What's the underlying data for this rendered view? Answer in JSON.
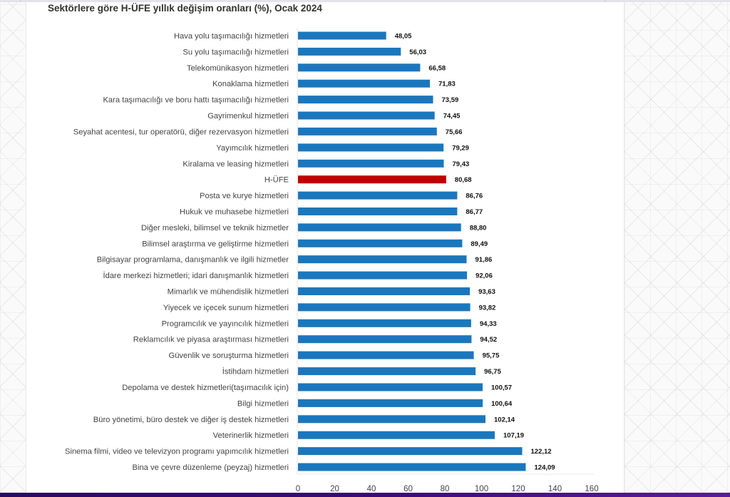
{
  "chart_data": {
    "type": "bar",
    "orientation": "horizontal",
    "title": "Sektörlere göre H-ÜFE yıllık değişim oranları (%), Ocak 2024",
    "xlabel": "",
    "ylabel": "",
    "xlim": [
      0,
      160
    ],
    "xticks": [
      "0",
      "20",
      "40",
      "60",
      "80",
      "100",
      "120",
      "140",
      "160"
    ],
    "grid": false,
    "legend": "none",
    "colors": {
      "default": "#1b77bd",
      "highlight": "#c00000"
    },
    "categories": [
      "Hava yolu taşımacılığı hizmetleri",
      "Su yolu taşımacılığı hizmetleri",
      "Telekomünikasyon hizmetleri",
      "Konaklama hizmetleri",
      "Kara taşımacılığı ve boru hattı taşımacılığı hizmetleri",
      "Gayrimenkul hizmetleri",
      "Seyahat acentesi, tur operatörü, diğer rezervasyon hizmetleri",
      "Yayımcılık hizmetleri",
      "Kiralama ve leasing hizmetleri",
      "H-ÜFE",
      "Posta ve kurye hizmetleri",
      "Hukuk ve muhasebe hizmetleri",
      "Diğer mesleki, bilimsel ve teknik hizmetler",
      "Bilimsel araştırma ve geliştirme hizmetleri",
      "Bilgisayar programlama, danışmanlık ve ilgili hizmetler",
      "İdare merkezi hizmetleri; idari danışmanlık hizmetleri",
      "Mimarlık ve mühendislik hizmetleri",
      "Yiyecek ve içecek sunum hizmetleri",
      "Programcılık ve yayıncılık hizmetleri",
      "Reklamcılık ve piyasa araştırması hizmetleri",
      "Güvenlik ve soruşturma hizmetleri",
      "İstihdam hizmetleri",
      "Depolama ve destek hizmetleri(taşımacılık için)",
      "Bilgi hizmetleri",
      "Büro yönetimi, büro destek ve diğer iş destek hizmetleri",
      "Veterinerlik hizmetleri",
      "Sinema filmi, video ve televizyon programı yapımcılık hizmetleri",
      "Bina ve çevre düzenleme (peyzaj) hizmetleri"
    ],
    "values": [
      48.05,
      56.03,
      66.58,
      71.83,
      73.59,
      74.45,
      75.66,
      79.29,
      79.43,
      80.68,
      86.76,
      86.77,
      88.8,
      89.49,
      91.86,
      92.06,
      93.63,
      93.82,
      94.33,
      94.52,
      95.75,
      96.75,
      100.57,
      100.64,
      102.14,
      107.19,
      122.12,
      124.09
    ],
    "value_labels": [
      "48,05",
      "56,03",
      "66,58",
      "71,83",
      "73,59",
      "74,45",
      "75,66",
      "79,29",
      "79,43",
      "80,68",
      "86,76",
      "86,77",
      "88,80",
      "89,49",
      "91,86",
      "92,06",
      "93,63",
      "93,82",
      "94,33",
      "94,52",
      "95,75",
      "96,75",
      "100,57",
      "100,64",
      "102,14",
      "107,19",
      "122,12",
      "124,09"
    ],
    "highlight_index": 9
  }
}
